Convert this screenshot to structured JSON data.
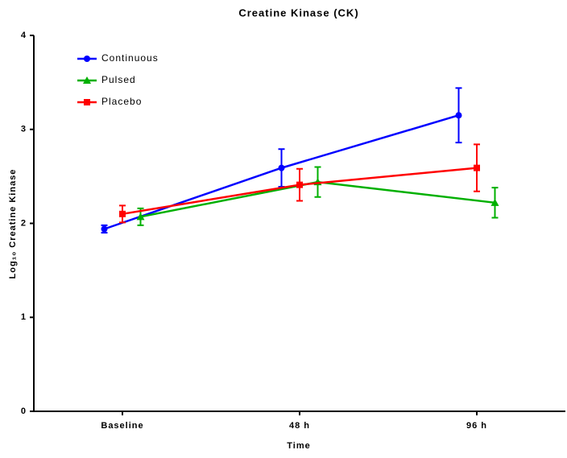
{
  "chart_data": {
    "type": "line",
    "title": "Creatine Kinase (CK)",
    "x_label": "Time",
    "y_label": "Log₁₀ Creatine Kinase",
    "categories": [
      "Baseline",
      "48 h",
      "96 h"
    ],
    "ylim": [
      0,
      4
    ],
    "yticks": [
      0,
      1,
      2,
      3,
      4
    ],
    "grid": false,
    "legend": "upper left",
    "series": [
      {
        "name": "Continuous",
        "color": "#0000ff",
        "marker": "circle",
        "values": [
          1.94,
          2.59,
          3.15
        ],
        "errors": [
          0.04,
          0.2,
          0.29
        ]
      },
      {
        "name": "Pulsed",
        "color": "#00b000",
        "marker": "triangle",
        "values": [
          2.07,
          2.44,
          2.22
        ],
        "errors": [
          0.09,
          0.16,
          0.16
        ]
      },
      {
        "name": "Placebo",
        "color": "#ff0000",
        "marker": "square",
        "values": [
          2.1,
          2.41,
          2.59
        ],
        "errors": [
          0.09,
          0.17,
          0.25
        ]
      }
    ]
  }
}
